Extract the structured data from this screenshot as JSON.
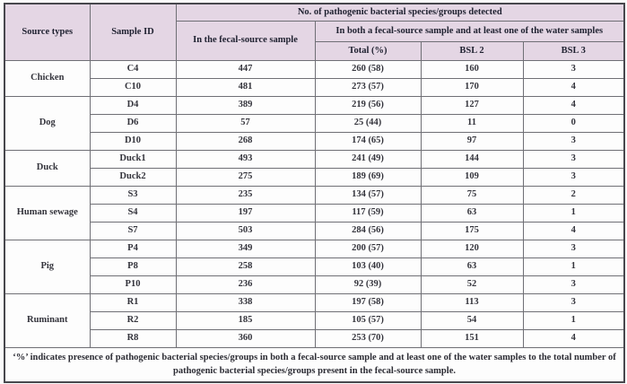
{
  "colors": {
    "header_bg": "#e4d6e4",
    "body_bg": "#fdfdfd",
    "border_color": "#6f6f75",
    "outer_border": "#47474d",
    "text_color": "#26262e",
    "page_bg": "#fbfbfb"
  },
  "table": {
    "headers": {
      "source_types": "Source types",
      "sample_id": "Sample ID",
      "detected": "No. of pathogenic bacterial species/groups detected",
      "fecal_source": "In the fecal-source sample",
      "both_samples": "In both a fecal-source sample and at least one of the water samples",
      "total_pct": "Total (%)",
      "bsl2": "BSL 2",
      "bsl3": "BSL 3"
    },
    "groups": [
      {
        "source": "Chicken",
        "rows": [
          {
            "id": "C4",
            "fecal": "447",
            "total": "260 (58)",
            "bsl2": "160",
            "bsl3": "3"
          },
          {
            "id": "C10",
            "fecal": "481",
            "total": "273 (57)",
            "bsl2": "170",
            "bsl3": "4"
          }
        ]
      },
      {
        "source": "Dog",
        "rows": [
          {
            "id": "D4",
            "fecal": "389",
            "total": "219 (56)",
            "bsl2": "127",
            "bsl3": "4"
          },
          {
            "id": "D6",
            "fecal": "57",
            "total": "25 (44)",
            "bsl2": "11",
            "bsl3": "0"
          },
          {
            "id": "D10",
            "fecal": "268",
            "total": "174 (65)",
            "bsl2": "97",
            "bsl3": "3"
          }
        ]
      },
      {
        "source": "Duck",
        "rows": [
          {
            "id": "Duck1",
            "fecal": "493",
            "total": "241 (49)",
            "bsl2": "144",
            "bsl3": "3"
          },
          {
            "id": "Duck2",
            "fecal": "275",
            "total": "189 (69)",
            "bsl2": "109",
            "bsl3": "3"
          }
        ]
      },
      {
        "source": "Human sewage",
        "rows": [
          {
            "id": "S3",
            "fecal": "235",
            "total": "134 (57)",
            "bsl2": "75",
            "bsl3": "2"
          },
          {
            "id": "S4",
            "fecal": "197",
            "total": "117 (59)",
            "bsl2": "63",
            "bsl3": "1"
          },
          {
            "id": "S7",
            "fecal": "503",
            "total": "284 (56)",
            "bsl2": "175",
            "bsl3": "4"
          }
        ]
      },
      {
        "source": "Pig",
        "rows": [
          {
            "id": "P4",
            "fecal": "349",
            "total": "200 (57)",
            "bsl2": "120",
            "bsl3": "3"
          },
          {
            "id": "P8",
            "fecal": "258",
            "total": "103 (40)",
            "bsl2": "63",
            "bsl3": "1"
          },
          {
            "id": "P10",
            "fecal": "236",
            "total": "92 (39)",
            "bsl2": "52",
            "bsl3": "3"
          }
        ]
      },
      {
        "source": "Ruminant",
        "rows": [
          {
            "id": "R1",
            "fecal": "338",
            "total": "197 (58)",
            "bsl2": "113",
            "bsl3": "3"
          },
          {
            "id": "R2",
            "fecal": "185",
            "total": "105 (57)",
            "bsl2": "54",
            "bsl3": "1"
          },
          {
            "id": "R8",
            "fecal": "360",
            "total": "253 (70)",
            "bsl2": "151",
            "bsl3": "4"
          }
        ]
      }
    ],
    "footnote": "‘%’ indicates presence of pathogenic bacterial species/groups in both a fecal-source sample and at least one of the water samples to the total number of pathogenic bacterial species/groups present in the fecal-source sample."
  }
}
